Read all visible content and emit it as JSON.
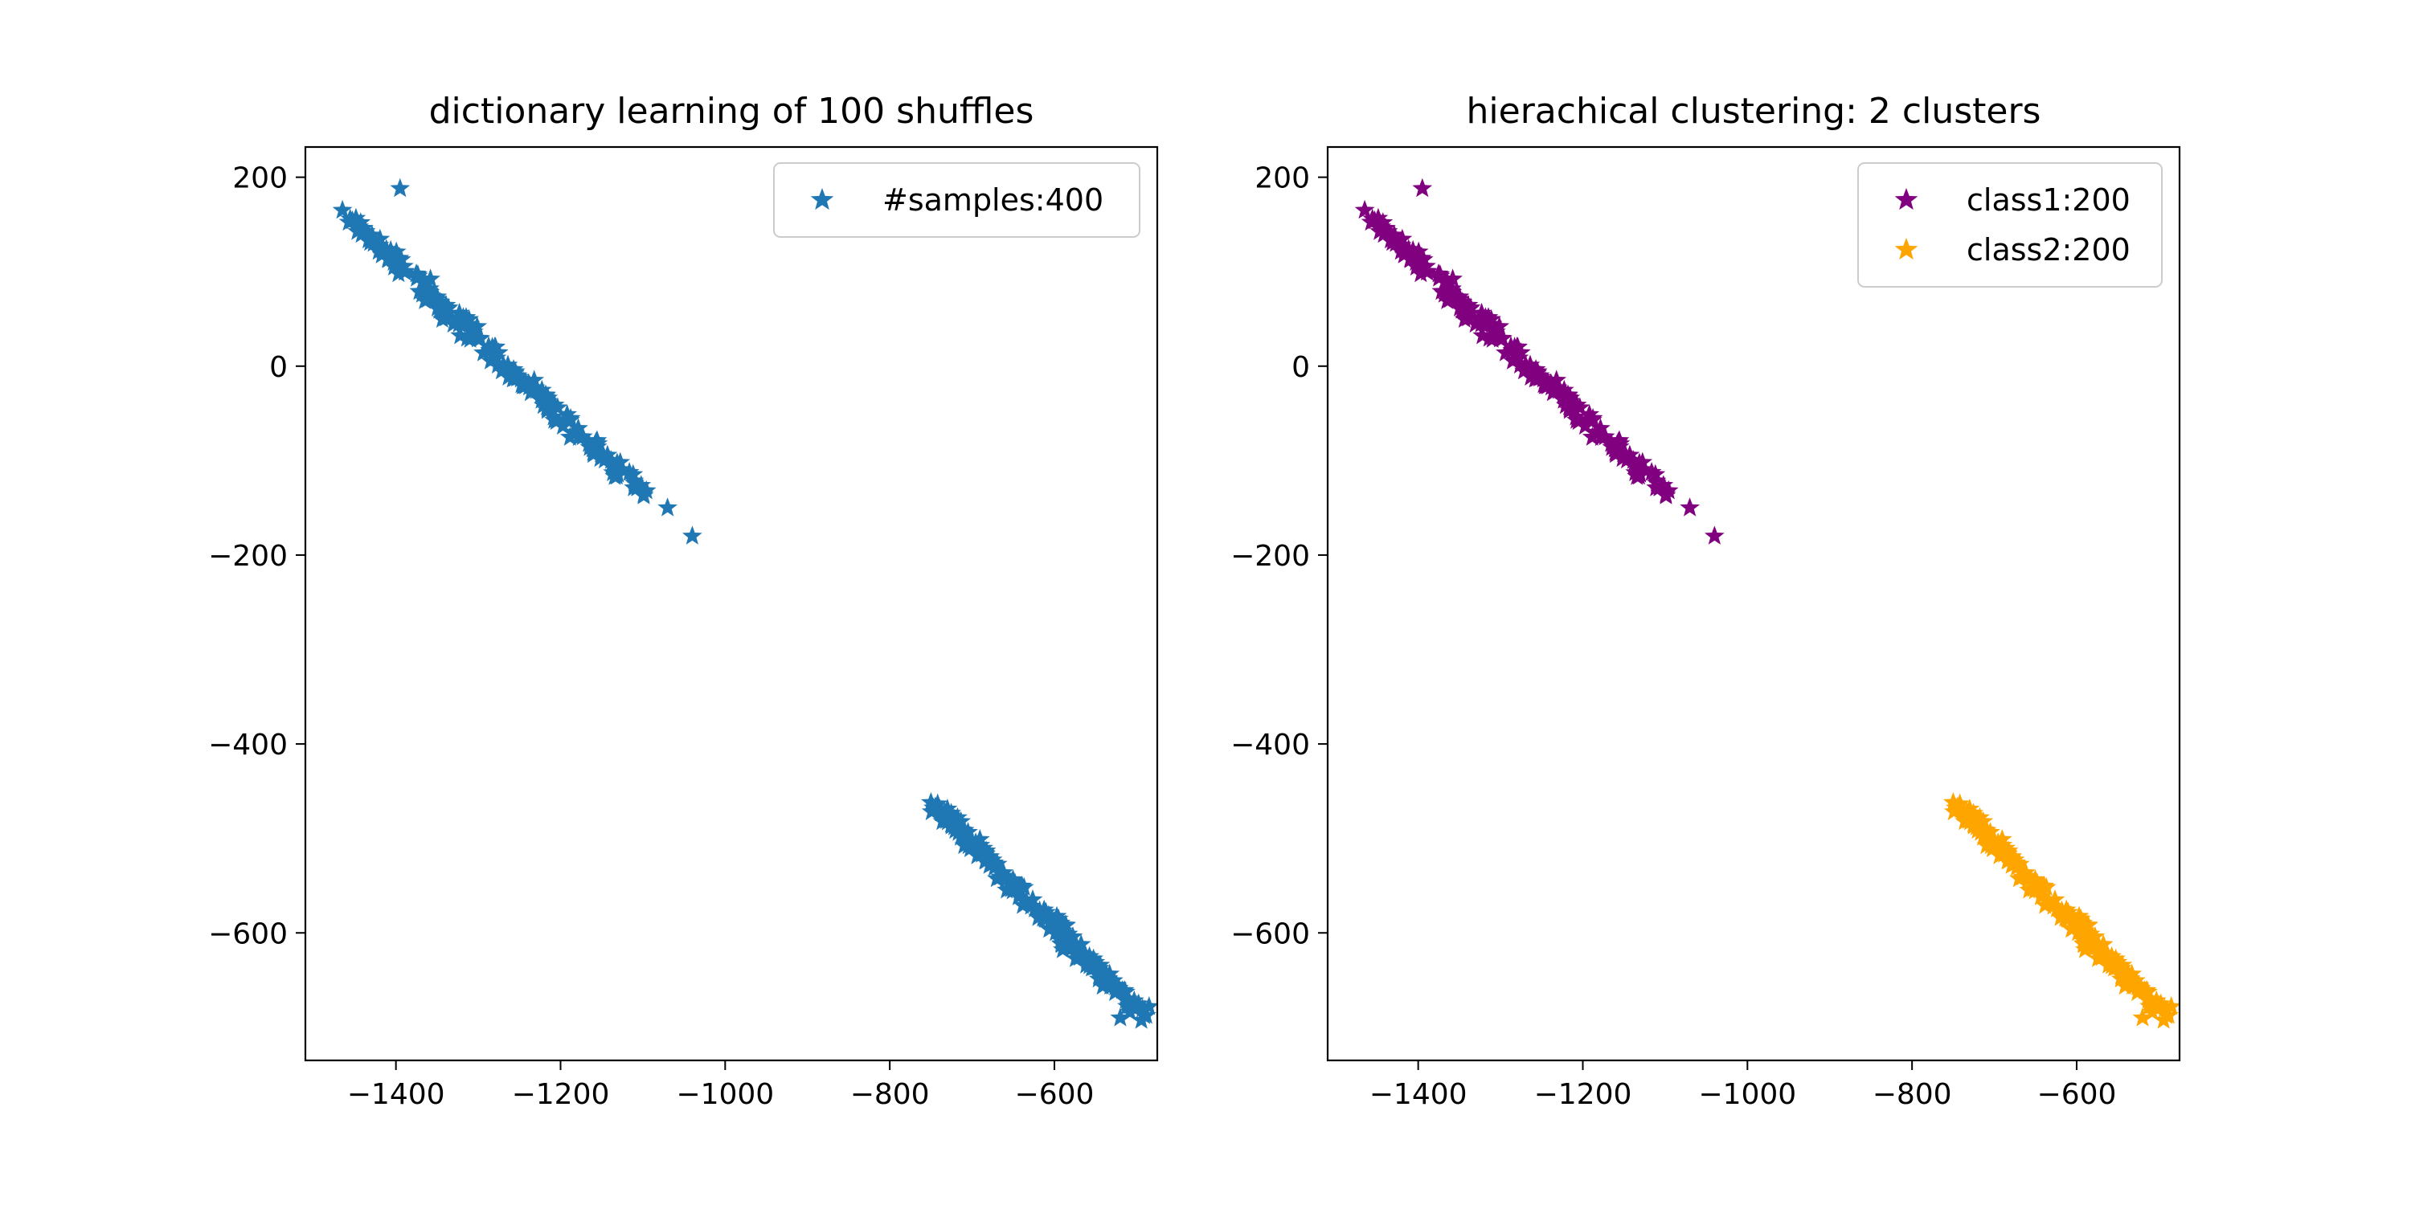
{
  "chart_data": [
    {
      "type": "scatter",
      "title": "dictionary learning of 100 shuffles",
      "xlabel": "",
      "ylabel": "",
      "xlim": [
        -1510,
        -475
      ],
      "ylim": [
        -735,
        232
      ],
      "xticks": [
        -1400,
        -1200,
        -1000,
        -800,
        -600
      ],
      "yticks": [
        200,
        0,
        -200,
        -400,
        -600
      ],
      "tick_labels": {
        "x": [
          "−1400",
          "−1200",
          "−1000",
          "−800",
          "−600"
        ],
        "y": [
          "200",
          "0",
          "−200",
          "−400",
          "−600"
        ]
      },
      "grid": false,
      "legend_position": "top-right",
      "marker": "star",
      "series": [
        {
          "name": "#samples:400",
          "color": "#1f77b4",
          "clusters": [
            {
              "from": [
                -1455,
                155
              ],
              "to": [
                -1100,
                -135
              ],
              "count": 200,
              "extras": [
                [
                  -1395,
                  188
                ],
                [
                  -1465,
                  165
                ],
                [
                  -1070,
                  -150
                ],
                [
                  -1040,
                  -180
                ]
              ]
            },
            {
              "from": [
                -745,
                -465
              ],
              "to": [
                -490,
                -690
              ],
              "count": 200,
              "extras": [
                [
                  -750,
                  -462
                ],
                [
                  -520,
                  -690
                ],
                [
                  -485,
                  -678
                ]
              ]
            }
          ]
        }
      ]
    },
    {
      "type": "scatter",
      "title": "hierachical clustering: 2 clusters",
      "xlabel": "",
      "ylabel": "",
      "xlim": [
        -1510,
        -475
      ],
      "ylim": [
        -735,
        232
      ],
      "xticks": [
        -1400,
        -1200,
        -1000,
        -800,
        -600
      ],
      "yticks": [
        200,
        0,
        -200,
        -400,
        -600
      ],
      "tick_labels": {
        "x": [
          "−1400",
          "−1200",
          "−1000",
          "−800",
          "−600"
        ],
        "y": [
          "200",
          "0",
          "−200",
          "−400",
          "−600"
        ]
      },
      "grid": false,
      "legend_position": "top-right",
      "marker": "star",
      "series": [
        {
          "name": "class1:200",
          "color": "#800080",
          "clusters": [
            {
              "from": [
                -1455,
                155
              ],
              "to": [
                -1100,
                -135
              ],
              "count": 200,
              "extras": [
                [
                  -1395,
                  188
                ],
                [
                  -1465,
                  165
                ],
                [
                  -1070,
                  -150
                ],
                [
                  -1040,
                  -180
                ]
              ]
            }
          ]
        },
        {
          "name": "class2:200",
          "color": "#ffa500",
          "clusters": [
            {
              "from": [
                -745,
                -465
              ],
              "to": [
                -490,
                -690
              ],
              "count": 200,
              "extras": [
                [
                  -750,
                  -462
                ],
                [
                  -520,
                  -690
                ],
                [
                  -485,
                  -678
                ]
              ]
            }
          ]
        }
      ]
    }
  ]
}
